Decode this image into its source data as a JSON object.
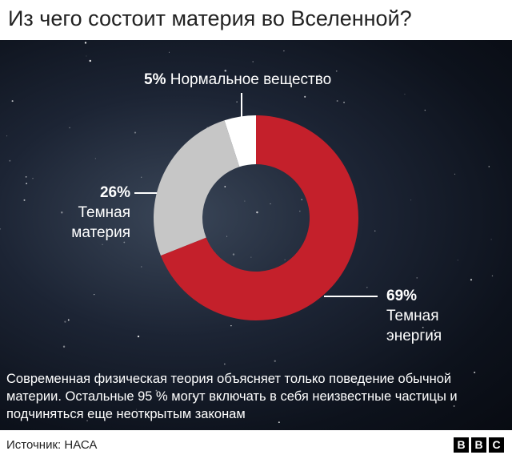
{
  "chart_data": {
    "type": "donut",
    "title": "Из чего состоит материя во Вселенной?",
    "categories": [
      "Нормальное вещество",
      "Темная материя",
      "Темная энергия"
    ],
    "values": [
      5,
      26,
      69
    ],
    "value_labels": [
      "5%",
      "26%",
      "69%"
    ],
    "colors": [
      "#ffffff",
      "#c6c6c6",
      "#c4202b"
    ],
    "note": "Современная физическая теория объясняет только поведение обычной материи. Остальные 95 % могут включать в себя неизвестные частицы и подчиняться еще неоткрытым законам",
    "source": "Источник: НАСА",
    "logo": [
      "B",
      "B",
      "C"
    ]
  }
}
